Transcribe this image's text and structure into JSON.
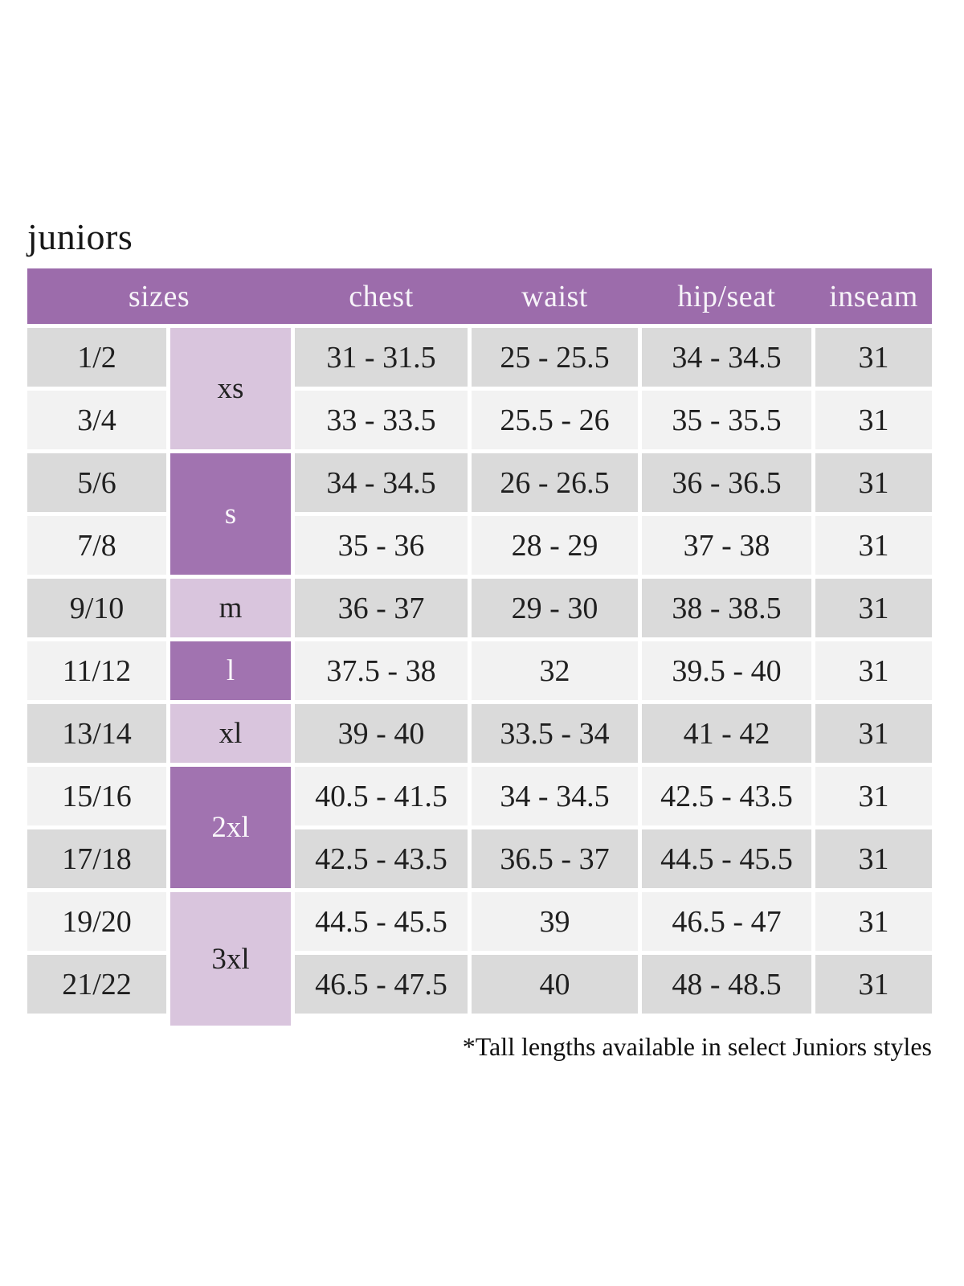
{
  "title": "juniors",
  "footnote": "*Tall lengths available in select Juniors styles",
  "colors": {
    "header_purple": "#9c6cab",
    "letter_dark_purple": "#a173b0",
    "letter_light_purple": "#d9c5dd",
    "row_gray": "#dadada",
    "row_light": "#f2f2f2",
    "text_dark": "#1f1f1f",
    "text_light": "#f7f4f9"
  },
  "table": {
    "headers": [
      "sizes",
      "chest",
      "waist",
      "hip/seat",
      "inseam"
    ],
    "size_groups": [
      {
        "label": "xs",
        "covers_rows": "1/2, 3/4"
      },
      {
        "label": "s",
        "covers_rows": "5/6, 7/8"
      },
      {
        "label": "m",
        "covers_rows": "9/10"
      },
      {
        "label": "l",
        "covers_rows": "11/12"
      },
      {
        "label": "xl",
        "covers_rows": "13/14"
      },
      {
        "label": "2xl",
        "covers_rows": "15/16, 17/18"
      },
      {
        "label": "3xl",
        "covers_rows": "19/20, 21/22"
      }
    ],
    "rows": [
      {
        "size": "1/2",
        "chest": "31 - 31.5",
        "waist": "25 - 25.5",
        "hip_seat": "34 - 34.5",
        "inseam": "31"
      },
      {
        "size": "3/4",
        "chest": "33 - 33.5",
        "waist": "25.5 - 26",
        "hip_seat": "35 - 35.5",
        "inseam": "31"
      },
      {
        "size": "5/6",
        "chest": "34 - 34.5",
        "waist": "26 - 26.5",
        "hip_seat": "36 - 36.5",
        "inseam": "31"
      },
      {
        "size": "7/8",
        "chest": "35 - 36",
        "waist": "28 - 29",
        "hip_seat": "37 - 38",
        "inseam": "31"
      },
      {
        "size": "9/10",
        "chest": "36 - 37",
        "waist": "29 - 30",
        "hip_seat": "38 - 38.5",
        "inseam": "31"
      },
      {
        "size": "11/12",
        "chest": "37.5 - 38",
        "waist": "32",
        "hip_seat": "39.5 - 40",
        "inseam": "31"
      },
      {
        "size": "13/14",
        "chest": "39 - 40",
        "waist": "33.5 - 34",
        "hip_seat": "41 - 42",
        "inseam": "31"
      },
      {
        "size": "15/16",
        "chest": "40.5 - 41.5",
        "waist": "34 - 34.5",
        "hip_seat": "42.5 - 43.5",
        "inseam": "31"
      },
      {
        "size": "17/18",
        "chest": "42.5 - 43.5",
        "waist": "36.5 - 37",
        "hip_seat": "44.5 - 45.5",
        "inseam": "31"
      },
      {
        "size": "19/20",
        "chest": "44.5 - 45.5",
        "waist": "39",
        "hip_seat": "46.5 - 47",
        "inseam": "31"
      },
      {
        "size": "21/22",
        "chest": "46.5 - 47.5",
        "waist": "40",
        "hip_seat": "48 - 48.5",
        "inseam": "31"
      }
    ]
  }
}
